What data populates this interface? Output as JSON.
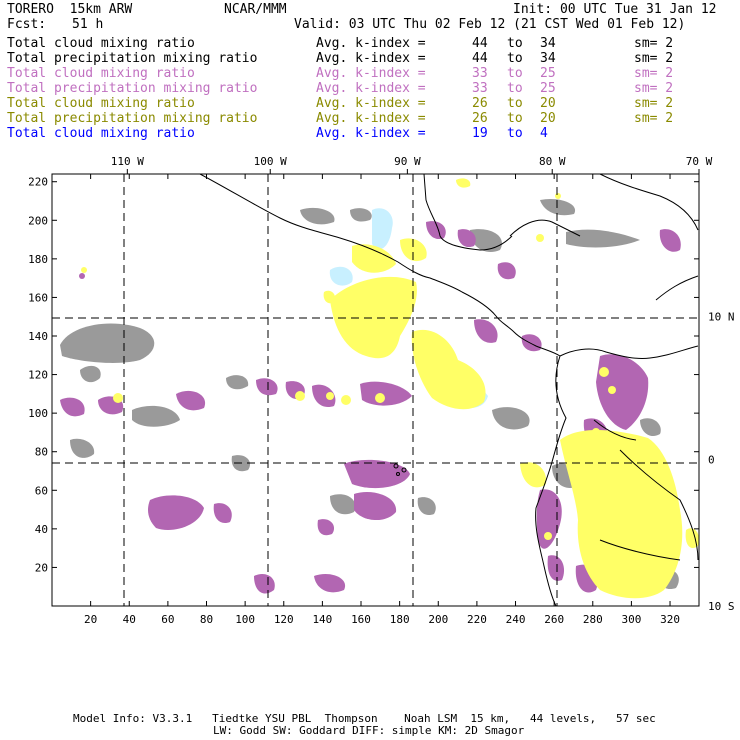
{
  "header": {
    "model": "TORERO  15km ARW",
    "center": "NCAR/MMM",
    "init": "Init: 00 UTC Tue 31 Jan 12",
    "fcst_label": "Fcst:",
    "fcst_value": "51 h",
    "valid": "Valid: 03 UTC Thu 02 Feb 12 (21 CST Wed 01 Feb 12)"
  },
  "legend": [
    {
      "field": "Total cloud mixing ratio",
      "kindex_label": "Avg. k-index =",
      "from": "44",
      "to_word": "to",
      "to": "34",
      "sm": "sm= 2",
      "color": "#000000"
    },
    {
      "field": "Total precipitation mixing ratio",
      "kindex_label": "Avg. k-index =",
      "from": "44",
      "to_word": "to",
      "to": "34",
      "sm": "sm= 2",
      "color": "#000000"
    },
    {
      "field": "Total cloud mixing ratio",
      "kindex_label": "Avg. k-index =",
      "from": "33",
      "to_word": "to",
      "to": "25",
      "sm": "sm= 2",
      "color": "#c070c0"
    },
    {
      "field": "Total precipitation mixing ratio",
      "kindex_label": "Avg. k-index =",
      "from": "33",
      "to_word": "to",
      "to": "25",
      "sm": "sm= 2",
      "color": "#c070c0"
    },
    {
      "field": "Total cloud mixing ratio",
      "kindex_label": "Avg. k-index =",
      "from": "26",
      "to_word": "to",
      "to": "20",
      "sm": "sm= 2",
      "color": "#8a8a00"
    },
    {
      "field": "Total precipitation mixing ratio",
      "kindex_label": "Avg. k-index =",
      "from": "26",
      "to_word": "to",
      "to": "20",
      "sm": "sm= 2",
      "color": "#8a8a00"
    },
    {
      "field": "Total cloud mixing ratio",
      "kindex_label": "Avg. k-index =",
      "from": "19",
      "to_word": "to",
      "to": "4",
      "sm": "",
      "color": "#0000ff"
    }
  ],
  "map": {
    "grid_x_ticks": [
      "20",
      "40",
      "60",
      "80",
      "100",
      "120",
      "140",
      "160",
      "180",
      "200",
      "220",
      "240",
      "260",
      "280",
      "300",
      "320"
    ],
    "grid_y_ticks": [
      "20",
      "40",
      "60",
      "80",
      "100",
      "120",
      "140",
      "160",
      "180",
      "200",
      "220"
    ],
    "grid_x_range": [
      0,
      335
    ],
    "grid_y_range": [
      0,
      224
    ],
    "lon_labels": [
      {
        "text": "110 W",
        "grid_x": 39
      },
      {
        "text": "100 W",
        "grid_x": 113
      },
      {
        "text": "90 W",
        "grid_x": 184
      },
      {
        "text": "80 W",
        "grid_x": 259
      },
      {
        "text": "70 W",
        "grid_x": 335
      }
    ],
    "lat_labels": [
      {
        "text": "10 N",
        "grid_y": 150
      },
      {
        "text": "0",
        "grid_y": 76
      },
      {
        "text": "10 S",
        "grid_y": 0
      }
    ],
    "colors": {
      "cloud_gray": "#9a9a9a",
      "precip_purple": "#b266b2",
      "yellow": "#ffff66",
      "light_blue": "#c8f0ff",
      "coast": "#000000",
      "grid": "#000000"
    }
  },
  "footer": {
    "line1": "Model Info: V3.3.1   Tiedtke YSU PBL  Thompson    Noah LSM  15 km,   44 levels,   57 sec",
    "line2": "LW: Godd SW: Goddard DIFF: simple KM: 2D Smagor"
  }
}
